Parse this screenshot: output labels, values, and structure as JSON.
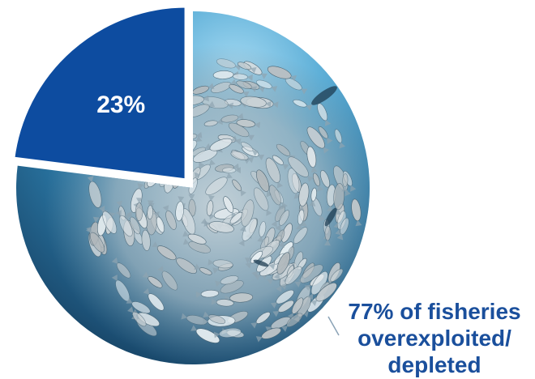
{
  "chart_data": {
    "type": "pie",
    "slices": [
      {
        "value": 23,
        "label": "23%",
        "color": "#0d4ca0",
        "exploded": true
      },
      {
        "value": 77,
        "label": "77% of fisheries overexploited/ depleted",
        "color": "#2b6f94",
        "fill": "school-of-fish-photo"
      }
    ],
    "title": "",
    "legend": "none"
  },
  "callout": {
    "line1": "77% of fisheries",
    "line2": "overexploited/",
    "line3": "depleted"
  },
  "colors": {
    "accent": "#0d4ca0",
    "callout_text": "#1a4f9c",
    "leader_line": "#8aa2b6"
  }
}
